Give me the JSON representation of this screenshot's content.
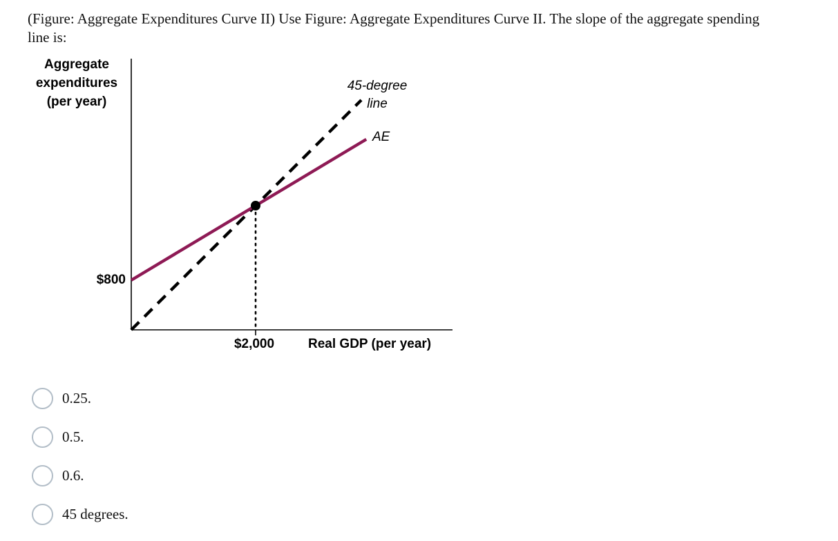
{
  "question": {
    "text": "(Figure: Aggregate Expenditures Curve II) Use Figure: Aggregate Expenditures Curve II. The slope of the aggregate spending line is:"
  },
  "chart_data": {
    "type": "line",
    "title": "",
    "ylabel": "Aggregate\nexpenditures\n(per year)",
    "xlabel": "Real GDP (per year)",
    "xlim": [
      0,
      5000
    ],
    "ylim": [
      0,
      4400
    ],
    "x_tick_labels": [
      "$2,000"
    ],
    "y_tick_labels": [
      "$800"
    ],
    "grid": false,
    "series": [
      {
        "name": "45-degree line",
        "label": "45-degree\nline",
        "style": "dashed",
        "color": "#000000",
        "points": [
          [
            0,
            0
          ],
          [
            3700,
            3700
          ]
        ]
      },
      {
        "name": "AE",
        "label": "AE",
        "style": "solid",
        "color": "#8e1a55",
        "intercept": 800,
        "slope": 0.6,
        "points": [
          [
            0,
            800
          ],
          [
            3780,
            3068
          ]
        ]
      }
    ],
    "equilibrium": {
      "x": 2000,
      "y": 2000
    }
  },
  "options": [
    {
      "label": "0.25."
    },
    {
      "label": "0.5."
    },
    {
      "label": "0.6."
    },
    {
      "label": "45 degrees."
    }
  ]
}
